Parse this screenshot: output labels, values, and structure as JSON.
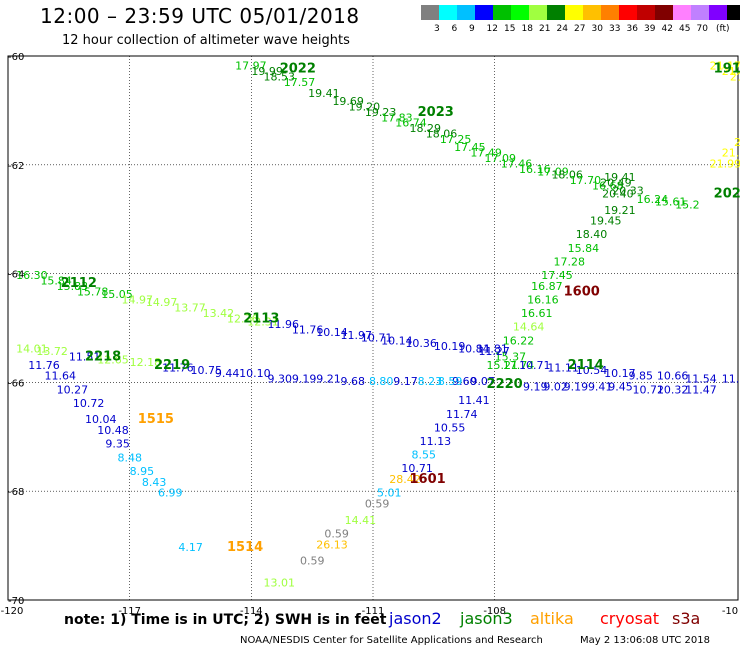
{
  "header": {
    "title": "12:00 – 23:59 UTC 05/01/2018",
    "subtitle": "12 hour collection of altimeter wave heights"
  },
  "colorbar": {
    "unit": "(ft)",
    "colors": [
      "#808080",
      "#00ffff",
      "#00c0ff",
      "#0000ff",
      "#00c000",
      "#00ff00",
      "#a0ff40",
      "#008000",
      "#ffff00",
      "#ffc000",
      "#ff8000",
      "#ff0000",
      "#c00000",
      "#800000",
      "#ff80ff",
      "#c080ff",
      "#8000ff",
      "#000000"
    ],
    "labels": [
      "3",
      "6",
      "9",
      "12",
      "15",
      "18",
      "21",
      "24",
      "27",
      "30",
      "33",
      "36",
      "39",
      "42",
      "45",
      "70"
    ]
  },
  "footer": {
    "note": "note: 1) Time is in UTC; 2) SWH is in feet",
    "credit": "NOAA/NESDIS Center for Satellite Applications and Research",
    "timestamp": "May  2 13:06:08 UTC 2018"
  },
  "legend": [
    {
      "name": "jason2",
      "color": "#0000cc"
    },
    {
      "name": "jason3",
      "color": "#008000"
    },
    {
      "name": "altika",
      "color": "#ffa000"
    },
    {
      "name": "cryosat",
      "color": "#ff0000"
    },
    {
      "name": "s3a",
      "color": "#800000"
    }
  ],
  "chart_data": {
    "type": "scatter",
    "title": "12:00 – 23:59 UTC 05/01/2018",
    "subtitle": "12 hour collection of altimeter wave heights",
    "xlim": [
      -120,
      -102
    ],
    "ylim": [
      -70,
      -60
    ],
    "x_ticks": [
      "-120",
      "-117",
      "-114",
      "-111",
      "-108",
      "-10"
    ],
    "y_ticks": [
      "-60",
      "-62",
      "-64",
      "-66",
      "-68",
      "-70"
    ],
    "value_labels": [
      {
        "lon": -114.4,
        "lat": -60.25,
        "text": "17.97",
        "color": "#00c000"
      },
      {
        "lon": -114.0,
        "lat": -60.35,
        "text": "19.99",
        "color": "#008000"
      },
      {
        "lon": -113.7,
        "lat": -60.45,
        "text": "18.53",
        "color": "#008000"
      },
      {
        "lon": -113.2,
        "lat": -60.55,
        "text": "17.57",
        "color": "#00c000"
      },
      {
        "lon": -112.6,
        "lat": -60.75,
        "text": "19.41",
        "color": "#008000"
      },
      {
        "lon": -112.0,
        "lat": -60.9,
        "text": "19.69",
        "color": "#008000"
      },
      {
        "lon": -111.6,
        "lat": -61.0,
        "text": "19.20",
        "color": "#008000"
      },
      {
        "lon": -111.2,
        "lat": -61.1,
        "text": "19.23",
        "color": "#008000"
      },
      {
        "lon": -110.8,
        "lat": -61.2,
        "text": "17.83",
        "color": "#00c000"
      },
      {
        "lon": -110.45,
        "lat": -61.3,
        "text": "16.74",
        "color": "#00c000"
      },
      {
        "lon": -110.1,
        "lat": -61.4,
        "text": "18.29",
        "color": "#008000"
      },
      {
        "lon": -109.7,
        "lat": -61.5,
        "text": "18.06",
        "color": "#008000"
      },
      {
        "lon": -109.35,
        "lat": -61.6,
        "text": "17.25",
        "color": "#00c000"
      },
      {
        "lon": -109.0,
        "lat": -61.75,
        "text": "17.45",
        "color": "#00c000"
      },
      {
        "lon": -108.6,
        "lat": -61.85,
        "text": "17.49",
        "color": "#00c000"
      },
      {
        "lon": -108.25,
        "lat": -61.95,
        "text": "17.09",
        "color": "#00c000"
      },
      {
        "lon": -107.85,
        "lat": -62.05,
        "text": "17.46",
        "color": "#00c000"
      },
      {
        "lon": -107.4,
        "lat": -62.15,
        "text": "16.16",
        "color": "#00c000"
      },
      {
        "lon": -106.95,
        "lat": -62.2,
        "text": "17.09",
        "color": "#00c000"
      },
      {
        "lon": -106.6,
        "lat": -62.25,
        "text": "18.06",
        "color": "#008000"
      },
      {
        "lon": -106.15,
        "lat": -62.35,
        "text": "17.70",
        "color": "#00c000"
      },
      {
        "lon": -105.6,
        "lat": -62.45,
        "text": "16.68",
        "color": "#00c000"
      },
      {
        "lon": -105.4,
        "lat": -62.4,
        "text": "20.49",
        "color": "#008000"
      },
      {
        "lon": -105.1,
        "lat": -62.55,
        "text": "20.33",
        "color": "#008000"
      },
      {
        "lon": -104.5,
        "lat": -62.7,
        "text": "16.24",
        "color": "#00c000"
      },
      {
        "lon": -104.05,
        "lat": -62.75,
        "text": "15.61",
        "color": "#00c000"
      },
      {
        "lon": -103.55,
        "lat": -62.8,
        "text": "15.2",
        "color": "#00c000"
      },
      {
        "lon": -105.3,
        "lat": -62.3,
        "text": "19.41",
        "color": "#008000"
      },
      {
        "lon": -105.35,
        "lat": -62.6,
        "text": "20.40",
        "color": "#008000"
      },
      {
        "lon": -105.3,
        "lat": -62.9,
        "text": "19.21",
        "color": "#008000"
      },
      {
        "lon": -105.65,
        "lat": -63.1,
        "text": "19.45",
        "color": "#008000"
      },
      {
        "lon": -106.0,
        "lat": -63.35,
        "text": "18.40",
        "color": "#008000"
      },
      {
        "lon": -106.2,
        "lat": -63.6,
        "text": "15.84",
        "color": "#00c000"
      },
      {
        "lon": -106.55,
        "lat": -63.85,
        "text": "17.28",
        "color": "#00c000"
      },
      {
        "lon": -106.85,
        "lat": -64.1,
        "text": "17.45",
        "color": "#00c000"
      },
      {
        "lon": -107.1,
        "lat": -64.3,
        "text": "16.87",
        "color": "#00c000"
      },
      {
        "lon": -107.2,
        "lat": -64.55,
        "text": "16.16",
        "color": "#00c000"
      },
      {
        "lon": -107.35,
        "lat": -64.8,
        "text": "16.61",
        "color": "#00c000"
      },
      {
        "lon": -107.55,
        "lat": -65.05,
        "text": "14.64",
        "color": "#a0ff40"
      },
      {
        "lon": -107.8,
        "lat": -65.3,
        "text": "16.22",
        "color": "#00c000"
      },
      {
        "lon": -108.0,
        "lat": -65.6,
        "text": "15.37",
        "color": "#00c000"
      },
      {
        "lon": -108.2,
        "lat": -65.75,
        "text": "15.21",
        "color": "#00c000"
      },
      {
        "lon": -107.8,
        "lat": -65.75,
        "text": "17.74",
        "color": "#00c000"
      },
      {
        "lon": -109.05,
        "lat": -66.05,
        "text": "9.60",
        "color": "#0000cc"
      },
      {
        "lon": -108.6,
        "lat": -66.05,
        "text": "9.07",
        "color": "#0000cc"
      },
      {
        "lon": -108.45,
        "lat": -65.45,
        "text": "11.81",
        "color": "#0000cc"
      },
      {
        "lon": -108.9,
        "lat": -66.4,
        "text": "11.41",
        "color": "#0000cc"
      },
      {
        "lon": -109.2,
        "lat": -66.65,
        "text": "11.74",
        "color": "#0000cc"
      },
      {
        "lon": -109.5,
        "lat": -66.9,
        "text": "10.55",
        "color": "#0000cc"
      },
      {
        "lon": -109.85,
        "lat": -67.15,
        "text": "11.13",
        "color": "#0000cc"
      },
      {
        "lon": -110.05,
        "lat": -67.4,
        "text": "8.55",
        "color": "#00c0ff"
      },
      {
        "lon": -110.3,
        "lat": -67.65,
        "text": "10.71",
        "color": "#0000cc"
      },
      {
        "lon": -110.6,
        "lat": -67.85,
        "text": "28.42",
        "color": "#ffc000"
      },
      {
        "lon": -110.9,
        "lat": -68.1,
        "text": "5.01",
        "color": "#00c0ff"
      },
      {
        "lon": -111.2,
        "lat": -68.3,
        "text": "0.59",
        "color": "#808080"
      },
      {
        "lon": -111.7,
        "lat": -68.6,
        "text": "14.41",
        "color": "#a0ff40"
      },
      {
        "lon": -112.2,
        "lat": -68.85,
        "text": "0.59",
        "color": "#808080"
      },
      {
        "lon": -112.4,
        "lat": -69.05,
        "text": "26.13",
        "color": "#ffc000"
      },
      {
        "lon": -112.8,
        "lat": -69.35,
        "text": "0.59",
        "color": "#808080"
      },
      {
        "lon": -113.7,
        "lat": -69.75,
        "text": "13.01",
        "color": "#a0ff40"
      },
      {
        "lon": -119.8,
        "lat": -64.1,
        "text": "16.30",
        "color": "#00c000"
      },
      {
        "lon": -119.2,
        "lat": -64.2,
        "text": "15.84",
        "color": "#00c000"
      },
      {
        "lon": -118.8,
        "lat": -64.3,
        "text": "15.83",
        "color": "#00c000"
      },
      {
        "lon": -118.3,
        "lat": -64.4,
        "text": "15.78",
        "color": "#00c000"
      },
      {
        "lon": -117.7,
        "lat": -64.45,
        "text": "15.05",
        "color": "#00c000"
      },
      {
        "lon": -117.2,
        "lat": -64.55,
        "text": "14.97",
        "color": "#a0ff40"
      },
      {
        "lon": -116.6,
        "lat": -64.6,
        "text": "14.97",
        "color": "#a0ff40"
      },
      {
        "lon": -115.9,
        "lat": -64.7,
        "text": "13.77",
        "color": "#a0ff40"
      },
      {
        "lon": -115.2,
        "lat": -64.8,
        "text": "13.42",
        "color": "#a0ff40"
      },
      {
        "lon": -114.6,
        "lat": -64.9,
        "text": "12.76",
        "color": "#a0ff40"
      },
      {
        "lon": -114.1,
        "lat": -64.95,
        "text": "12.31",
        "color": "#a0ff40"
      },
      {
        "lon": -113.6,
        "lat": -65.0,
        "text": "11.96",
        "color": "#0000cc"
      },
      {
        "lon": -113.0,
        "lat": -65.1,
        "text": "11.76",
        "color": "#0000cc"
      },
      {
        "lon": -112.4,
        "lat": -65.15,
        "text": "10.14",
        "color": "#0000cc"
      },
      {
        "lon": -111.8,
        "lat": -65.2,
        "text": "11.97",
        "color": "#0000cc"
      },
      {
        "lon": -111.3,
        "lat": -65.25,
        "text": "10.71",
        "color": "#0000cc"
      },
      {
        "lon": -110.8,
        "lat": -65.3,
        "text": "10.14",
        "color": "#0000cc"
      },
      {
        "lon": -110.2,
        "lat": -65.35,
        "text": "10.36",
        "color": "#0000cc"
      },
      {
        "lon": -109.5,
        "lat": -65.4,
        "text": "10.19",
        "color": "#0000cc"
      },
      {
        "lon": -108.9,
        "lat": -65.45,
        "text": "10.84",
        "color": "#0000cc"
      },
      {
        "lon": -108.4,
        "lat": -65.5,
        "text": "11.27",
        "color": "#0000cc"
      },
      {
        "lon": -107.4,
        "lat": -65.75,
        "text": "10.71",
        "color": "#0000cc"
      },
      {
        "lon": -106.7,
        "lat": -65.8,
        "text": "11.11",
        "color": "#0000cc"
      },
      {
        "lon": -106.0,
        "lat": -65.85,
        "text": "10.54",
        "color": "#0000cc"
      },
      {
        "lon": -105.3,
        "lat": -65.9,
        "text": "10.17",
        "color": "#0000cc"
      },
      {
        "lon": -104.7,
        "lat": -65.95,
        "text": "9.85",
        "color": "#0000cc"
      },
      {
        "lon": -104.0,
        "lat": -65.95,
        "text": "10.66",
        "color": "#0000cc"
      },
      {
        "lon": -103.3,
        "lat": -66.0,
        "text": "11.54",
        "color": "#0000cc"
      },
      {
        "lon": -102.4,
        "lat": -66.0,
        "text": "11.3",
        "color": "#0000cc"
      },
      {
        "lon": -106.8,
        "lat": -66.15,
        "text": "9.02",
        "color": "#0000cc"
      },
      {
        "lon": -106.3,
        "lat": -66.15,
        "text": "9.19",
        "color": "#0000cc"
      },
      {
        "lon": -105.7,
        "lat": -66.15,
        "text": "9.41",
        "color": "#0000cc"
      },
      {
        "lon": -105.2,
        "lat": -66.15,
        "text": "9.45",
        "color": "#0000cc"
      },
      {
        "lon": -104.6,
        "lat": -66.2,
        "text": "10.72",
        "color": "#0000cc"
      },
      {
        "lon": -104.0,
        "lat": -66.2,
        "text": "10.32",
        "color": "#0000cc"
      },
      {
        "lon": -103.3,
        "lat": -66.2,
        "text": "11.47",
        "color": "#0000cc"
      },
      {
        "lon": -107.3,
        "lat": -66.15,
        "text": "9.19",
        "color": "#0000cc"
      },
      {
        "lon": -119.8,
        "lat": -65.45,
        "text": "14.01",
        "color": "#a0ff40"
      },
      {
        "lon": -119.3,
        "lat": -65.5,
        "text": "13.72",
        "color": "#a0ff40"
      },
      {
        "lon": -118.5,
        "lat": -65.6,
        "text": "11.51",
        "color": "#0000cc"
      },
      {
        "lon": -117.8,
        "lat": -65.65,
        "text": "12.65",
        "color": "#a0ff40"
      },
      {
        "lon": -117.0,
        "lat": -65.7,
        "text": "12.18",
        "color": "#a0ff40"
      },
      {
        "lon": -116.2,
        "lat": -65.8,
        "text": "11.76",
        "color": "#0000cc"
      },
      {
        "lon": -115.5,
        "lat": -65.85,
        "text": "10.75",
        "color": "#0000cc"
      },
      {
        "lon": -114.9,
        "lat": -65.9,
        "text": "9.44",
        "color": "#0000cc"
      },
      {
        "lon": -114.3,
        "lat": -65.9,
        "text": "10.10",
        "color": "#0000cc"
      },
      {
        "lon": -113.6,
        "lat": -66.0,
        "text": "9.30",
        "color": "#0000cc"
      },
      {
        "lon": -113.0,
        "lat": -66.0,
        "text": "9.19",
        "color": "#0000cc"
      },
      {
        "lon": -112.4,
        "lat": -66.0,
        "text": "9.21",
        "color": "#0000cc"
      },
      {
        "lon": -111.8,
        "lat": -66.05,
        "text": "9.68",
        "color": "#0000cc"
      },
      {
        "lon": -111.1,
        "lat": -66.05,
        "text": "8.80",
        "color": "#00c0ff"
      },
      {
        "lon": -110.5,
        "lat": -66.05,
        "text": "9.17",
        "color": "#0000cc"
      },
      {
        "lon": -109.9,
        "lat": -66.05,
        "text": "8.23",
        "color": "#00c0ff"
      },
      {
        "lon": -109.4,
        "lat": -66.05,
        "text": "8.59",
        "color": "#00c0ff"
      },
      {
        "lon": -119.5,
        "lat": -65.75,
        "text": "11.76",
        "color": "#0000cc"
      },
      {
        "lon": -119.1,
        "lat": -65.95,
        "text": "11.64",
        "color": "#0000cc"
      },
      {
        "lon": -118.8,
        "lat": -66.2,
        "text": "10.27",
        "color": "#0000cc"
      },
      {
        "lon": -118.4,
        "lat": -66.45,
        "text": "10.72",
        "color": "#0000cc"
      },
      {
        "lon": -118.1,
        "lat": -66.75,
        "text": "10.04",
        "color": "#0000cc"
      },
      {
        "lon": -117.8,
        "lat": -66.95,
        "text": "10.48",
        "color": "#0000cc"
      },
      {
        "lon": -117.6,
        "lat": -67.2,
        "text": "9.35",
        "color": "#0000cc"
      },
      {
        "lon": -117.3,
        "lat": -67.45,
        "text": "8.48",
        "color": "#00c0ff"
      },
      {
        "lon": -117.0,
        "lat": -67.7,
        "text": "8.95",
        "color": "#00c0ff"
      },
      {
        "lon": -116.7,
        "lat": -67.9,
        "text": "8.43",
        "color": "#00c0ff"
      },
      {
        "lon": -116.3,
        "lat": -68.1,
        "text": "6.99",
        "color": "#00c0ff"
      },
      {
        "lon": -115.8,
        "lat": -69.1,
        "text": "4.17",
        "color": "#00c0ff"
      },
      {
        "lon": -102.7,
        "lat": -60.25,
        "text": "21.17",
        "color": "#ffff00"
      },
      {
        "lon": -102.4,
        "lat": -60.35,
        "text": "21.84",
        "color": "#ffff00"
      },
      {
        "lon": -102.2,
        "lat": -60.45,
        "text": "21.92",
        "color": "#ffff00"
      },
      {
        "lon": -101.8,
        "lat": -60.55,
        "text": "19.21",
        "color": "#008000"
      },
      {
        "lon": -101.4,
        "lat": -60.65,
        "text": "19.89",
        "color": "#008000"
      },
      {
        "lon": -101.3,
        "lat": -60.8,
        "text": "21.85",
        "color": "#ffff00"
      },
      {
        "lon": -101.3,
        "lat": -61.0,
        "text": "24.15",
        "color": "#ffc000"
      },
      {
        "lon": -101.6,
        "lat": -61.2,
        "text": "22.67",
        "color": "#ffff00"
      },
      {
        "lon": -101.9,
        "lat": -61.45,
        "text": "22.87",
        "color": "#ffff00"
      },
      {
        "lon": -102.1,
        "lat": -61.65,
        "text": "21.98",
        "color": "#ffff00"
      },
      {
        "lon": -102.4,
        "lat": -61.85,
        "text": "21.83",
        "color": "#ffff00"
      },
      {
        "lon": -102.7,
        "lat": -62.05,
        "text": "21.99",
        "color": "#ffff00"
      }
    ],
    "track_labels": [
      {
        "lon": -113.3,
        "lat": -60.3,
        "text": "2022",
        "color": "#008000"
      },
      {
        "lon": -109.9,
        "lat": -61.1,
        "text": "2023",
        "color": "#008000"
      },
      {
        "lon": -102.6,
        "lat": -60.3,
        "text": "1918",
        "color": "#008000"
      },
      {
        "lon": -102.6,
        "lat": -62.6,
        "text": "2024",
        "color": "#008000"
      },
      {
        "lon": -118.7,
        "lat": -64.25,
        "text": "2112",
        "color": "#008000"
      },
      {
        "lon": -114.2,
        "lat": -64.9,
        "text": "2113",
        "color": "#008000"
      },
      {
        "lon": -118.1,
        "lat": -65.6,
        "text": "2218",
        "color": "#008000"
      },
      {
        "lon": -116.4,
        "lat": -65.75,
        "text": "2219",
        "color": "#008000"
      },
      {
        "lon": -106.2,
        "lat": -65.75,
        "text": "2114",
        "color": "#008000"
      },
      {
        "lon": -108.2,
        "lat": -66.1,
        "text": "2220",
        "color": "#008000"
      },
      {
        "lon": -116.8,
        "lat": -66.75,
        "text": "1515",
        "color": "#ffa000"
      },
      {
        "lon": -114.6,
        "lat": -69.1,
        "text": "1514",
        "color": "#ffa000"
      },
      {
        "lon": -106.3,
        "lat": -64.4,
        "text": "1600",
        "color": "#800000"
      },
      {
        "lon": -110.1,
        "lat": -67.85,
        "text": "1601",
        "color": "#800000"
      }
    ]
  }
}
